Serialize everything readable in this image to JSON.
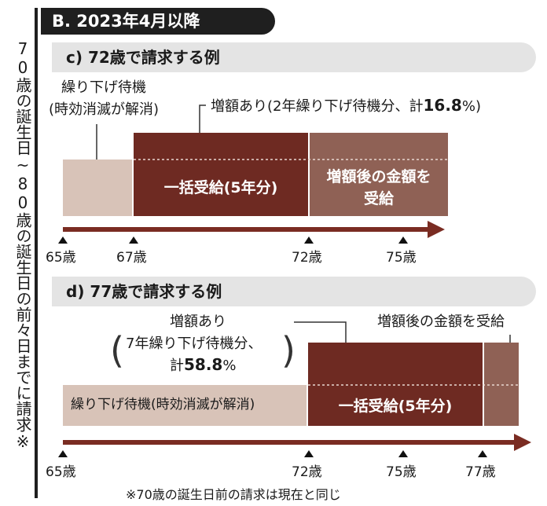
{
  "header": {
    "title": "B. 2023年4月以降"
  },
  "side_note": "70歳の誕生日~80歳の誕生日の前々日までに請求※",
  "section_c": {
    "title": "c) 72歳で請求する例",
    "deferral_label_1": "繰り下げ待機",
    "deferral_label_2": "(時効消滅が解消)",
    "increase_prefix": "増額あり(2年繰り下げ待機分、計",
    "increase_value": "16.8",
    "increase_suffix": "%)",
    "lump_label": "一括受給(5年分)",
    "after_label_1": "増額後の金額を",
    "after_label_2": "受給",
    "ticks": [
      "65歳",
      "67歳",
      "72歳",
      "75歳"
    ]
  },
  "section_d": {
    "title": "d) 77歳で請求する例",
    "increase_line1": "増額あり",
    "increase_line2": "7年繰り下げ待機分、",
    "increase_line3_prefix": "計",
    "increase_value": "58.8",
    "increase_suffix": "%",
    "after_label": "増額後の金額を受給",
    "deferral_label": "繰り下げ待機(時効消滅が解消)",
    "lump_label": "一括受給(5年分)",
    "ticks": [
      "65歳",
      "72歳",
      "75歳",
      "77歳"
    ]
  },
  "footnote": "※70歳の誕生日前の請求は現在と同じ",
  "colors": {
    "light_block": "#d8c3b8",
    "dark_block": "#6e2a22",
    "mid_block": "#8f6155",
    "arrow": "#7a2c22"
  }
}
